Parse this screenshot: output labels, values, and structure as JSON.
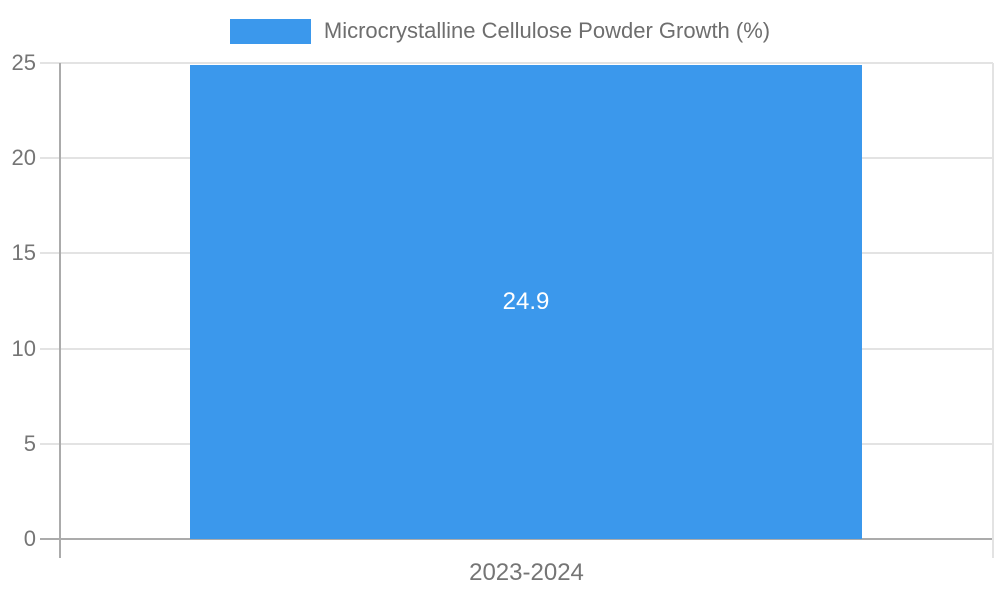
{
  "chart_data": {
    "type": "bar",
    "title": "Microcrystalline Cellulose Powder Growth (%)",
    "categories": [
      "2023-2024"
    ],
    "series": [
      {
        "name": "Microcrystalline Cellulose Powder Growth (%)",
        "values": [
          24.9
        ]
      }
    ],
    "values": [
      24.9
    ],
    "value_label": "24.9",
    "yticks": [
      0,
      5,
      10,
      15,
      20,
      25
    ],
    "ylim": [
      0,
      25
    ],
    "xlabel": "",
    "ylabel": "",
    "grid": true,
    "legend_position": "top-center",
    "bar_color": "#3b98ec",
    "value_label_color": "#ffffff",
    "axis_text_color": "#757575",
    "gridline_color": "#e3e3e3",
    "axis_line_color": "#ababab"
  }
}
